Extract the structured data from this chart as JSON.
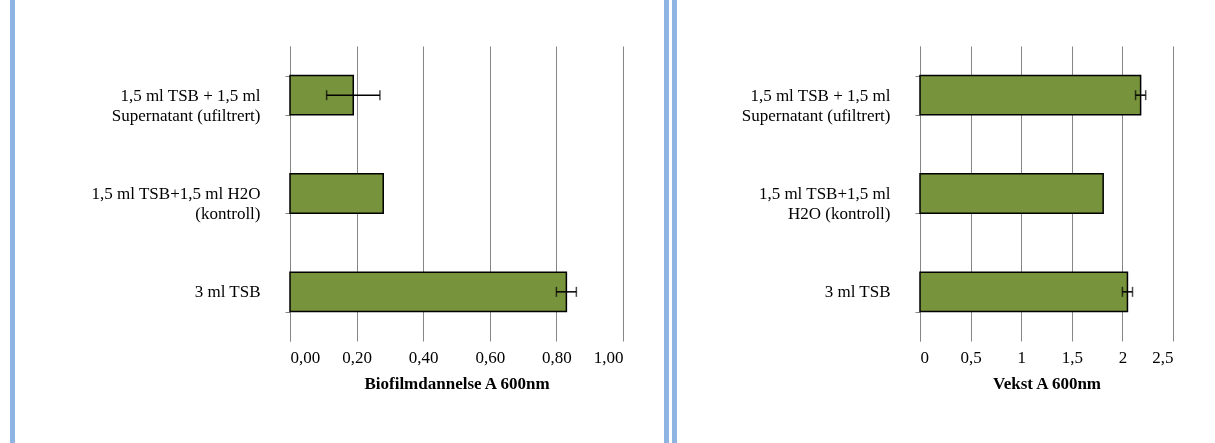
{
  "chart_data": [
    {
      "type": "bar",
      "orientation": "horizontal",
      "categories": [
        "1,5 ml TSB + 1,5 ml Supernatant (ufiltrert)",
        "1,5 ml TSB+1,5 ml H2O (kontroll)",
        "3 ml TSB"
      ],
      "values": [
        0.19,
        0.28,
        0.83
      ],
      "errors": [
        0.08,
        null,
        0.03
      ],
      "color": "#77933c",
      "xlabel": "Biofilmdannelse A 600nm",
      "xlim": [
        0,
        1
      ],
      "xticks": [
        {
          "value": 0,
          "label": "0,00"
        },
        {
          "value": 0.2,
          "label": "0,20"
        },
        {
          "value": 0.4,
          "label": "0,40"
        },
        {
          "value": 0.6,
          "label": "0,60"
        },
        {
          "value": 0.8,
          "label": "0,80"
        },
        {
          "value": 1,
          "label": "1,00"
        }
      ],
      "grid": "x"
    },
    {
      "type": "bar",
      "orientation": "horizontal",
      "categories": [
        "1,5 ml TSB + 1,5 ml Supernatant (ufiltrert)",
        "1,5 ml TSB+1,5 ml H2O (kontroll)",
        "3 ml TSB"
      ],
      "values": [
        2.18,
        1.81,
        2.05
      ],
      "errors": [
        0.05,
        null,
        0.05
      ],
      "color": "#77933c",
      "xlabel": "Vekst A 600nm",
      "xlim": [
        0,
        2.5
      ],
      "xticks": [
        0,
        {
          "value": 0.5,
          "label": "0,5"
        },
        1,
        {
          "value": 1.5,
          "label": "1,5"
        },
        2,
        {
          "value": 2.5,
          "label": "2,5"
        }
      ],
      "grid": "x"
    }
  ]
}
